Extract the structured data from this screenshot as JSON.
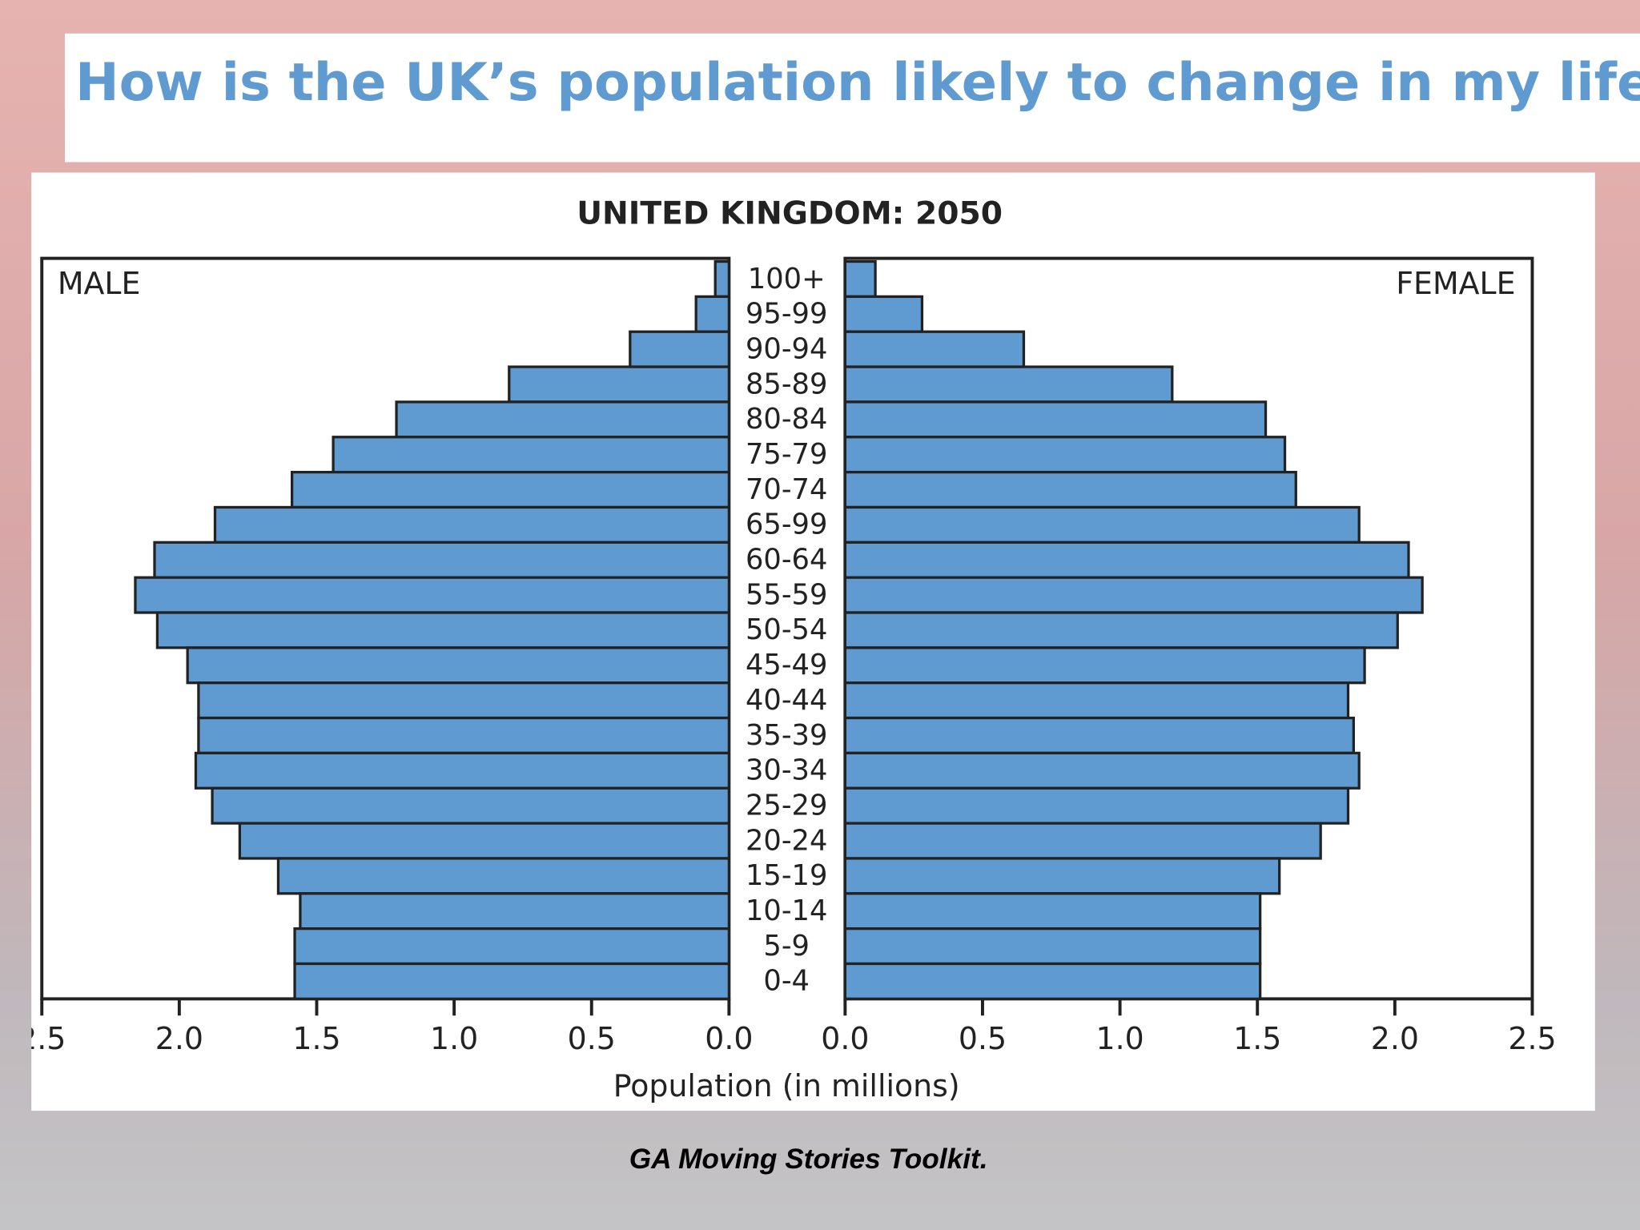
{
  "header": {
    "title": "How is the UK’s population likely to change in my lifetime?"
  },
  "footer": {
    "text": "GA Moving Stories Toolkit."
  },
  "chart_data": {
    "type": "pyramid",
    "title": "UNITED KINGDOM: 2050",
    "x_label": "Population (in millions)",
    "categories": [
      "100+",
      "95-99",
      "90-94",
      "85-89",
      "80-84",
      "75-79",
      "70-74",
      "65-99",
      "60-64",
      "55-59",
      "50-54",
      "45-49",
      "40-44",
      "35-39",
      "30-34",
      "25-29",
      "20-24",
      "15-19",
      "10-14",
      "5-9",
      "0-4"
    ],
    "series": [
      {
        "name": "MALE",
        "color": "#5f9bd1",
        "values": [
          0.05,
          0.12,
          0.36,
          0.8,
          1.21,
          1.44,
          1.59,
          1.87,
          2.09,
          2.16,
          2.08,
          1.97,
          1.93,
          1.93,
          1.94,
          1.88,
          1.78,
          1.64,
          1.56,
          1.58,
          1.58
        ]
      },
      {
        "name": "FEMALE",
        "color": "#5f9bd1",
        "values": [
          0.11,
          0.28,
          0.65,
          1.19,
          1.53,
          1.6,
          1.64,
          1.87,
          2.05,
          2.1,
          2.01,
          1.89,
          1.83,
          1.85,
          1.87,
          1.83,
          1.73,
          1.58,
          1.51,
          1.51,
          1.51
        ]
      }
    ],
    "xlim": [
      0,
      2.5
    ],
    "xticks": [
      {
        "value": 0,
        "label": "0.0"
      },
      0.5,
      {
        "value": 1,
        "label": "1.0"
      },
      1.5,
      {
        "value": 2,
        "label": "2.0"
      },
      2.5
    ]
  }
}
